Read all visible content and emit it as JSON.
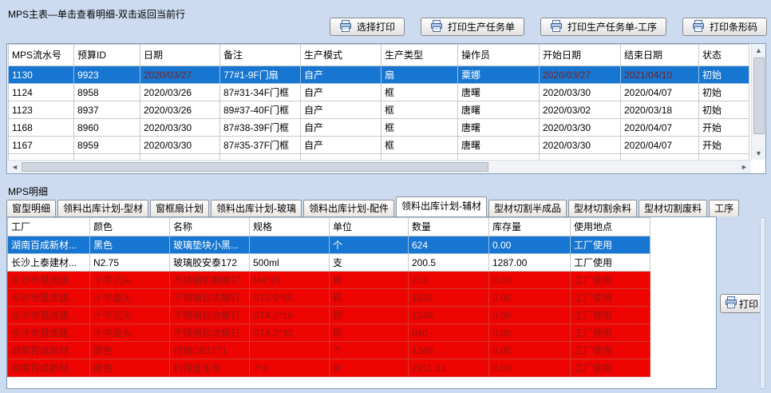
{
  "colors": {
    "selected_bg": "#1776d1",
    "selected_date_text": "#7c1e1e",
    "alert_bg": "#ee0400",
    "alert_text": "#971414"
  },
  "main": {
    "title": "MPS主表—单击查看明细-双击返回当前行",
    "toolbar": {
      "buttons": [
        "选择打印",
        "打印生产任务单",
        "打印生产任务单-工序",
        "打印条形码"
      ]
    },
    "table": {
      "columns": [
        "MPS流水号",
        "预算ID",
        "日期",
        "备注",
        "生产模式",
        "生产类型",
        "操作员",
        "开始日期",
        "结束日期",
        "状态"
      ],
      "rows": [
        {
          "state": "selected",
          "cells": [
            "1130",
            "9923",
            "2020/03/27",
            "77#1-9F门扇",
            "自产",
            "扇",
            "粟娜",
            "2020/03/27",
            "2021/04/10",
            "初始"
          ]
        },
        {
          "state": "",
          "cells": [
            "1124",
            "8958",
            "2020/03/26",
            "87#31-34F门框",
            "自产",
            "框",
            "唐曙",
            "2020/03/30",
            "2020/04/07",
            "初始"
          ]
        },
        {
          "state": "",
          "cells": [
            "1123",
            "8937",
            "2020/03/26",
            "89#37-40F门框",
            "自产",
            "框",
            "唐曙",
            "2020/03/02",
            "2020/03/18",
            "初始"
          ]
        },
        {
          "state": "",
          "cells": [
            "1168",
            "8960",
            "2020/03/30",
            "87#38-39F门框",
            "自产",
            "框",
            "唐曙",
            "2020/03/30",
            "2020/04/07",
            "开始"
          ]
        },
        {
          "state": "",
          "cells": [
            "1167",
            "8959",
            "2020/03/30",
            "87#35-37F门框",
            "自产",
            "框",
            "唐曙",
            "2020/03/30",
            "2020/04/07",
            "开始"
          ]
        },
        {
          "state": "partial",
          "cells": [
            "",
            "",
            "",
            "",
            "",
            "",
            "",
            "",
            "",
            ""
          ]
        }
      ]
    }
  },
  "detail": {
    "title": "MPS明细",
    "tabs": [
      "窗型明细",
      "领料出库计划-型材",
      "窗框扇计划",
      "领料出库计划-玻璃",
      "领料出库计划-配件",
      "领料出库计划-辅材",
      "型材切割半成品",
      "型材切割余料",
      "型材切割废料",
      "工序"
    ],
    "active_tab_index": 5,
    "table": {
      "columns": [
        "工厂",
        "颜色",
        "名称",
        "规格",
        "单位",
        "数量",
        "库存量",
        "使用地点"
      ],
      "rows": [
        {
          "state": "selected",
          "cells": [
            "湖南百成新材...",
            "黑色",
            "玻璃垫块小黑...",
            "",
            "个",
            "624",
            "0.00",
            "工厂使用"
          ]
        },
        {
          "state": "",
          "cells": [
            "长沙上泰建材...",
            "N2.75",
            "玻璃胶安泰172",
            "500ml",
            "支",
            "200.5",
            "1287.00",
            "工厂使用"
          ]
        },
        {
          "state": "alert",
          "cells": [
            "长沙市慧虎建...",
            "十字沉头",
            "不锈钢机制螺钉",
            "M4*25",
            "颗",
            "216",
            "0.00",
            "工厂使用"
          ]
        },
        {
          "state": "alert",
          "cells": [
            "长沙市慧虎建...",
            "十字盘头",
            "不锈钢自攻螺钉",
            "ST3.9*50",
            "颗",
            "1632",
            "0.00",
            "工厂使用"
          ]
        },
        {
          "state": "alert",
          "cells": [
            "长沙市慧虎建...",
            "十字沉头",
            "不锈钢自攻螺钉",
            "ST4.2*16",
            "颗",
            "1248",
            "0.00",
            "工厂使用"
          ]
        },
        {
          "state": "alert",
          "cells": [
            "长沙市慧虎建...",
            "十字盘头",
            "不锈钢自攻螺钉",
            "ST4.2*32",
            "颗",
            "840",
            "0.00",
            "工厂使用"
          ]
        },
        {
          "state": "alert",
          "cells": [
            "湖南百成新材...",
            "原色",
            "付档CB1771",
            "",
            "个",
            "1248",
            "0.00",
            "工厂使用"
          ]
        },
        {
          "state": "alert",
          "cells": [
            "湖南百成新材...",
            "原色",
            "利得佳毛条",
            "7*4",
            "米",
            "2911.81",
            "0.00",
            "工厂使用"
          ]
        }
      ]
    },
    "print_button_label": "打印"
  }
}
